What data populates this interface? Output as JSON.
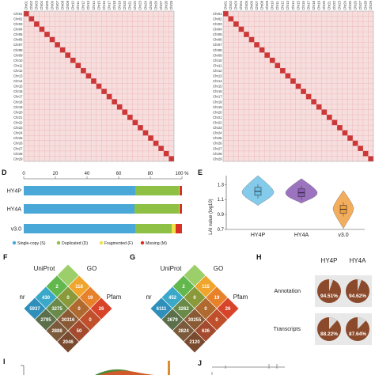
{
  "heatmap": {
    "chr_labels": [
      "Chr01",
      "Chr02",
      "Chr03",
      "Chr04",
      "Chr05",
      "Chr06",
      "Chr07",
      "Chr08",
      "Chr09",
      "Chr10",
      "Chr11",
      "Chr12",
      "Chr13",
      "Chr14",
      "Chr15",
      "Chr16",
      "Chr17",
      "Chr18",
      "Chr19",
      "Chr20",
      "Chr21",
      "Chr22",
      "Chr23",
      "Chr24",
      "Chr25",
      "Chr26",
      "Chr27",
      "Chr28",
      "Chr29"
    ],
    "left_top_labels": [
      "Chr01",
      "Chr02",
      "Chr03",
      "Chr04",
      "Chr05",
      "Chr06",
      "Chr07",
      "Chr08",
      "Chr09",
      "Chr10",
      "Chr11",
      "Chr12",
      "Chr13",
      "Chr14",
      "Chr15",
      "Chr16",
      "Chr17",
      "Chr18",
      "Chr19",
      "Chr20",
      "Chr21",
      "Chr22",
      "Chr23",
      "Chr24",
      "Chr25",
      "Chr26",
      "Chr27",
      "Chr28",
      "Chr29"
    ],
    "colors": {
      "background": "#f7dede",
      "grid": "#e9a9a9",
      "diagonal": "#c41a1a"
    }
  },
  "panel_d": {
    "letter": "D",
    "axis_ticks": [
      "0",
      "20",
      "40",
      "60",
      "80",
      "100 %"
    ],
    "chart_data": {
      "type": "bar",
      "orientation": "horizontal-stacked",
      "categories": [
        "HY4P",
        "HY4A",
        "v3.0"
      ],
      "series": [
        {
          "name": "Single-copy (S)",
          "color": "#4aa8d8",
          "values": [
            70.5,
            70.0,
            70.5
          ]
        },
        {
          "name": "Duplicated (D)",
          "color": "#8dc044",
          "values": [
            27.5,
            28.0,
            23.0
          ]
        },
        {
          "name": "Fragmented (F)",
          "color": "#f0e04a",
          "values": [
            0.5,
            0.5,
            2.5
          ]
        },
        {
          "name": "Missing (M)",
          "color": "#d93025",
          "values": [
            1.5,
            1.5,
            4.0
          ]
        }
      ],
      "xlim": [
        0,
        100
      ],
      "legend": [
        "Single-copy (S)",
        "Duplicated (D)",
        "Fragmented (F)",
        "Missing (M)"
      ]
    }
  },
  "panel_e": {
    "letter": "E",
    "ylabel": "LAI value (log10)",
    "yticks": [
      "0.7",
      "0.9",
      "1.1",
      "1.3"
    ],
    "chart_data": {
      "type": "violin",
      "categories": [
        "HY4P",
        "HY4A",
        "v3.0"
      ],
      "medians": [
        1.21,
        1.19,
        0.97
      ],
      "colors": [
        "#6fc3e8",
        "#8a5bb5",
        "#f0a040"
      ],
      "ylim": [
        0.7,
        1.42
      ]
    }
  },
  "panel_f": {
    "letter": "F",
    "labels": {
      "top_left": "UniProt",
      "top_right": "GO",
      "left": "nr",
      "right": "Pfam"
    },
    "values": [
      "2",
      "118",
      "430",
      "0",
      "19",
      "5937",
      "3275",
      "0",
      "26",
      "2795",
      "30316",
      "0",
      "2888",
      "50",
      "2046"
    ]
  },
  "panel_g": {
    "letter": "G",
    "labels": {
      "top_left": "UniProt",
      "top_right": "GO",
      "left": "nr",
      "right": "Pfam"
    },
    "values": [
      "2",
      "115",
      "452",
      "0",
      "19",
      "6111",
      "3262",
      "0",
      "26",
      "2679",
      "30255",
      "0",
      "2824",
      "626",
      "2120"
    ]
  },
  "panel_h": {
    "letter": "H",
    "columns": [
      "HY4P",
      "HY4A"
    ],
    "rows": [
      {
        "label": "Annotation",
        "values": [
          "94.51%",
          "94.62%"
        ],
        "fractions": [
          0.9451,
          0.9462
        ]
      },
      {
        "label": "Transcripts",
        "values": [
          "88.22%",
          "87.64%"
        ],
        "fractions": [
          0.8822,
          0.8764
        ]
      }
    ],
    "colors": {
      "fill": "#8b4a2b",
      "rest": "#d9d9d9",
      "tile": "#e8e8e8"
    }
  },
  "bottom": {
    "letter_i": "I",
    "letter_j": "J"
  }
}
